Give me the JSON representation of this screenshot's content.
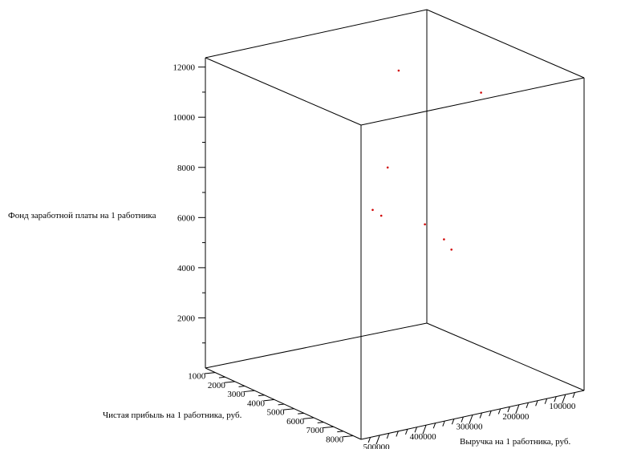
{
  "chart_data": {
    "type": "scatter",
    "projection": "3d-box",
    "xlabel": "Выручка на 1 работника, руб.",
    "ylabel": "Чистая прибыль на 1 работника, руб.",
    "zlabel": "Фонд заработной платы на 1 работника",
    "x_ticks": [
      500000,
      400000,
      300000,
      200000,
      100000
    ],
    "y_ticks": [
      1000,
      2000,
      3000,
      4000,
      5000,
      6000,
      7000,
      8000
    ],
    "z_ticks": [
      2000,
      4000,
      6000,
      8000,
      10000,
      12000
    ],
    "xlim": [
      540000,
      60000
    ],
    "ylim": [
      500,
      8400
    ],
    "zlim": [
      0,
      12500
    ],
    "grid": false,
    "points": [
      {
        "x": 230000,
        "y": 3000,
        "z": 11500
      },
      {
        "x": 180000,
        "y": 6000,
        "z": 11500
      },
      {
        "x": 275000,
        "y": 3500,
        "z": 8000
      },
      {
        "x": 320000,
        "y": 3800,
        "z": 6600
      },
      {
        "x": 310000,
        "y": 4000,
        "z": 6400
      },
      {
        "x": 250000,
        "y": 4800,
        "z": 6100
      },
      {
        "x": 230000,
        "y": 5300,
        "z": 5600
      },
      {
        "x": 180000,
        "y": 4500,
        "z": 4700
      }
    ],
    "point_color": "#d10000"
  }
}
